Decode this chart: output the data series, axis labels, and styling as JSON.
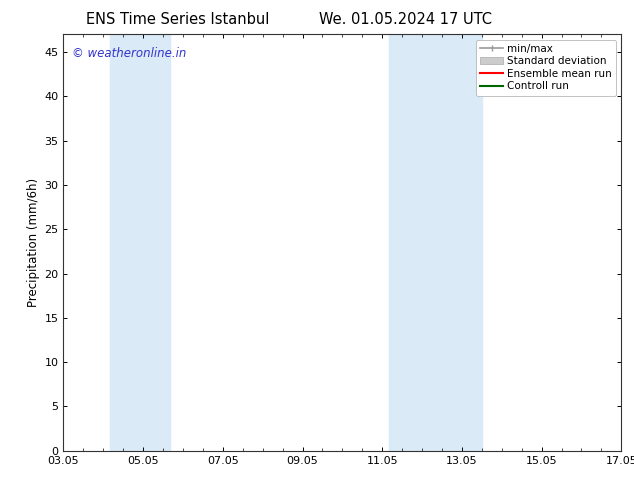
{
  "title_left": "ENS Time Series Istanbul",
  "title_right": "We. 01.05.2024 17 UTC",
  "ylabel": "Precipitation (mm/6h)",
  "ylim": [
    0,
    47
  ],
  "yticks": [
    0,
    5,
    10,
    15,
    20,
    25,
    30,
    35,
    40,
    45
  ],
  "xtick_labels": [
    "03.05",
    "05.05",
    "07.05",
    "09.05",
    "11.05",
    "13.05",
    "15.05",
    "17.05"
  ],
  "watermark": "© weatheronline.in",
  "watermark_color": "#3333cc",
  "background_color": "#ffffff",
  "plot_bg_color": "#ffffff",
  "shaded_regions": [
    {
      "xmin": 4.17,
      "xmax": 5.67,
      "color": "#daeaf7"
    },
    {
      "xmin": 11.17,
      "xmax": 12.0,
      "color": "#daeaf7"
    },
    {
      "xmin": 12.0,
      "xmax": 13.5,
      "color": "#daeaf7"
    }
  ],
  "legend_items": [
    {
      "label": "min/max",
      "color": "#999999",
      "lw": 1.2
    },
    {
      "label": "Standard deviation",
      "color": "#cccccc",
      "lw": 6
    },
    {
      "label": "Ensemble mean run",
      "color": "#ff0000",
      "lw": 1.5
    },
    {
      "label": "Controll run",
      "color": "#006600",
      "lw": 1.5
    }
  ],
  "title_fontsize": 10.5,
  "axis_fontsize": 8.5,
  "tick_fontsize": 8,
  "legend_fontsize": 7.5,
  "watermark_fontsize": 8.5,
  "x_ticks": [
    3,
    5,
    7,
    9,
    11,
    13,
    15,
    17
  ],
  "x_start": 3,
  "x_end": 17
}
